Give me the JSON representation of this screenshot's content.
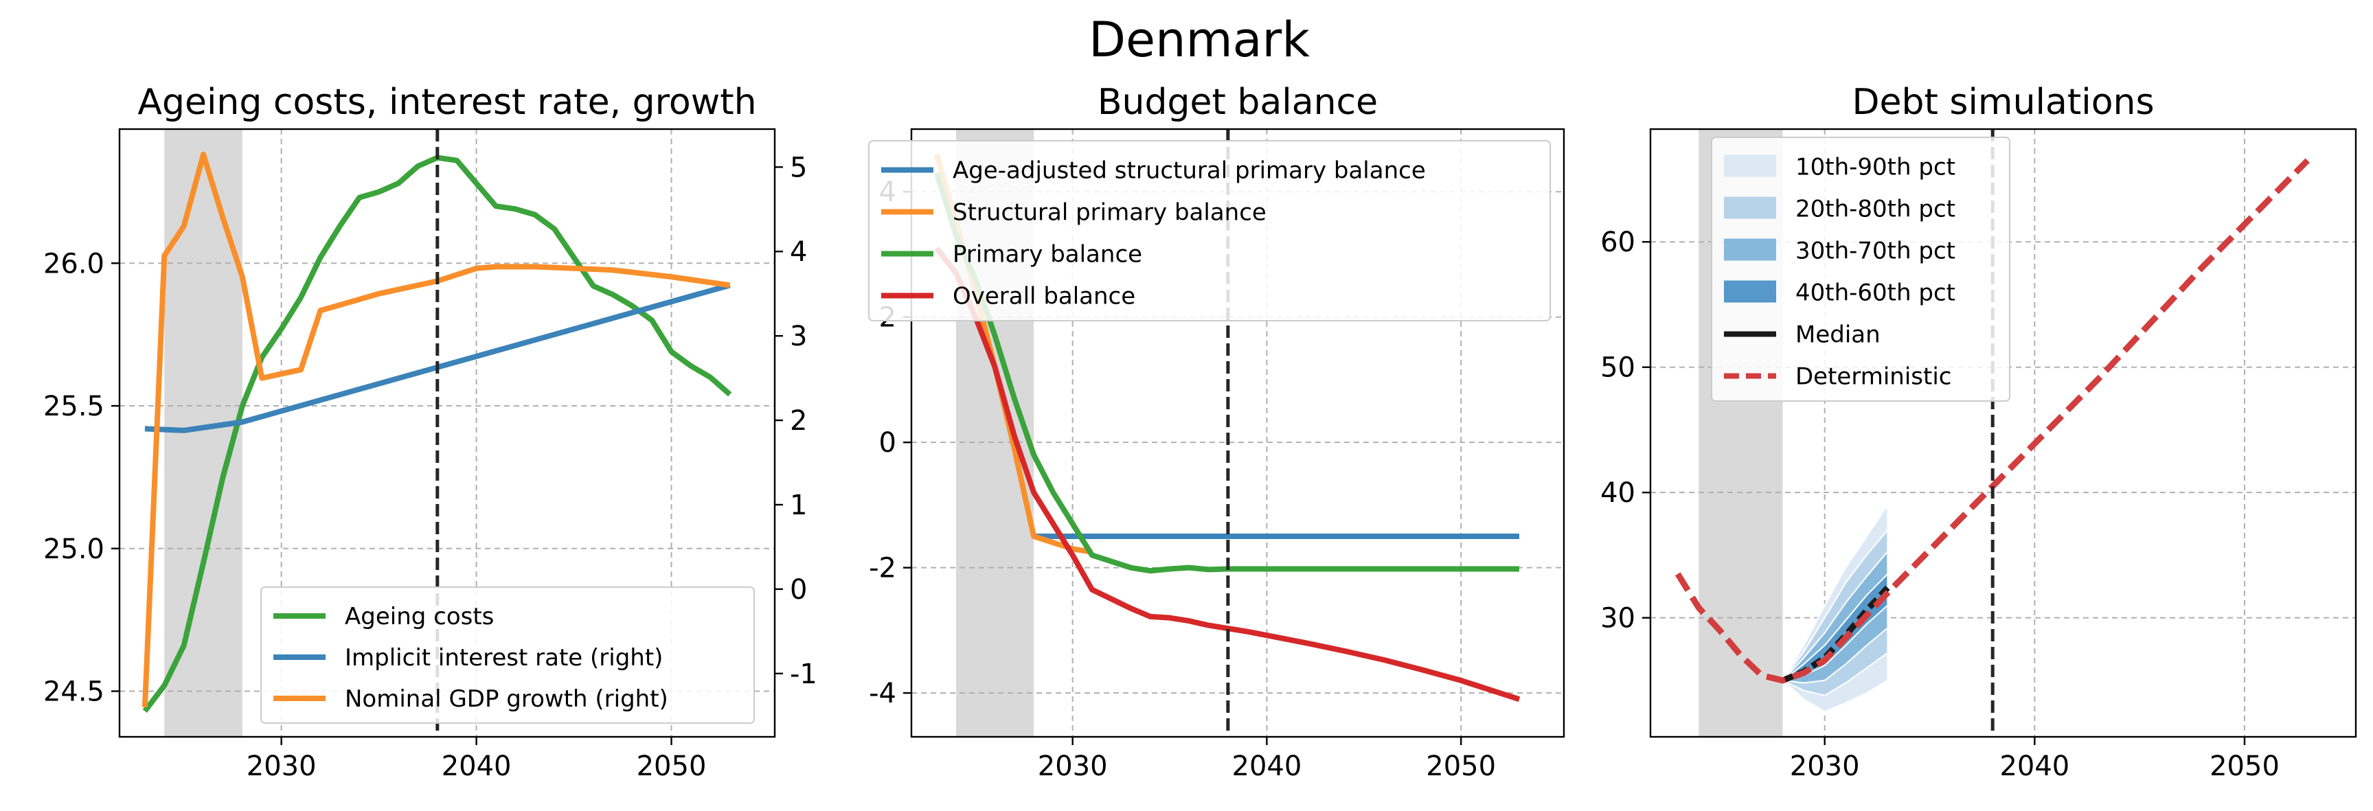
{
  "figure": {
    "title": "Denmark"
  },
  "colors": {
    "green": "#3ba33b",
    "blue": "#3b83b8",
    "orange": "#f98f2b",
    "red": "#d62828",
    "deterministic": "#d23d3d",
    "median": "#1a1a1a",
    "fan1": "#dce9f5",
    "fan2": "#b6d3ea",
    "fan3": "#86b8dc",
    "fan4": "#5598c9"
  },
  "chart_data": [
    {
      "type": "line",
      "title": "Ageing costs, interest rate, growth",
      "xlim": [
        2021.7,
        2055.3
      ],
      "ylim": [
        24.34,
        26.47
      ],
      "y2lim": [
        -1.75,
        5.45
      ],
      "xticks": [
        2030,
        2040,
        2050
      ],
      "yticks": [
        24.5,
        25.0,
        25.5,
        26.0
      ],
      "ytick_labels": [
        "24.5",
        "25.0",
        "25.5",
        "26.0"
      ],
      "y2ticks": [
        -1,
        0,
        1,
        2,
        3,
        4,
        5
      ],
      "y2tick_labels": [
        "-1",
        "0",
        "1",
        "2",
        "3",
        "4",
        "5"
      ],
      "shaded_span": [
        2024,
        2028
      ],
      "vline": 2038,
      "legend_position": "lower-right",
      "series": [
        {
          "name": "Ageing costs",
          "axis": "left",
          "color": "green",
          "x": [
            2023,
            2024,
            2025,
            2026,
            2027,
            2028,
            2029,
            2030,
            2031,
            2032,
            2033,
            2034,
            2035,
            2036,
            2037,
            2038,
            2039,
            2040,
            2041,
            2042,
            2043,
            2044,
            2045,
            2046,
            2047,
            2048,
            2049,
            2050,
            2051,
            2052,
            2053
          ],
          "y": [
            24.43,
            24.52,
            24.66,
            24.95,
            25.25,
            25.5,
            25.67,
            25.77,
            25.88,
            26.02,
            26.13,
            26.23,
            26.25,
            26.28,
            26.34,
            26.37,
            26.36,
            26.28,
            26.2,
            26.19,
            26.17,
            26.12,
            26.02,
            25.92,
            25.89,
            25.85,
            25.8,
            25.69,
            25.64,
            25.6,
            25.54
          ]
        },
        {
          "name": "Implicit interest rate (right)",
          "axis": "right",
          "color": "blue",
          "x": [
            2023,
            2025,
            2028,
            2053
          ],
          "y": [
            1.9,
            1.88,
            1.98,
            3.6
          ]
        },
        {
          "name": "Nominal GDP growth (right)",
          "axis": "right",
          "color": "orange",
          "x": [
            2023,
            2024,
            2025,
            2026,
            2027,
            2028,
            2029,
            2030,
            2031,
            2032,
            2035,
            2038,
            2040,
            2041,
            2043,
            2045,
            2047,
            2050,
            2053
          ],
          "y": [
            -1.4,
            3.95,
            4.3,
            5.15,
            4.4,
            3.7,
            2.5,
            2.55,
            2.6,
            3.3,
            3.5,
            3.65,
            3.8,
            3.82,
            3.82,
            3.8,
            3.78,
            3.7,
            3.6
          ]
        }
      ]
    },
    {
      "type": "line",
      "title": "Budget balance",
      "xlim": [
        2021.7,
        2055.3
      ],
      "ylim": [
        -4.7,
        5.0
      ],
      "xticks": [
        2030,
        2040,
        2050
      ],
      "yticks": [
        -4,
        -2,
        0,
        2,
        4
      ],
      "ytick_labels": [
        "-4",
        "-2",
        "0",
        "2",
        "4"
      ],
      "shaded_span": [
        2024,
        2028
      ],
      "vline": 2038,
      "legend_position": "upper-right",
      "series": [
        {
          "name": "Age-adjusted structural primary balance",
          "color": "blue",
          "x": [
            2028,
            2053
          ],
          "y": [
            -1.5,
            -1.5
          ]
        },
        {
          "name": "Structural primary balance",
          "color": "orange",
          "x": [
            2023,
            2024,
            2025,
            2026,
            2027,
            2028,
            2029,
            2030,
            2031
          ],
          "y": [
            4.6,
            3.5,
            2.4,
            1.2,
            -0.1,
            -1.5,
            -1.6,
            -1.7,
            -1.75
          ]
        },
        {
          "name": "Primary balance",
          "color": "green",
          "x": [
            2023,
            2024,
            2025,
            2026,
            2027,
            2028,
            2029,
            2030,
            2031,
            2032,
            2033,
            2034,
            2035,
            2036,
            2037,
            2038,
            2039,
            2040,
            2045,
            2050,
            2053
          ],
          "y": [
            4.3,
            3.3,
            2.6,
            1.7,
            0.7,
            -0.2,
            -0.8,
            -1.3,
            -1.8,
            -1.9,
            -2.0,
            -2.05,
            -2.02,
            -2.0,
            -2.03,
            -2.02,
            -2.02,
            -2.02,
            -2.02,
            -2.02,
            -2.02
          ]
        },
        {
          "name": "Overall balance",
          "color": "red",
          "x": [
            2023,
            2024,
            2025,
            2026,
            2027,
            2028,
            2029,
            2030,
            2031,
            2032,
            2033,
            2034,
            2035,
            2036,
            2037,
            2038,
            2039,
            2040,
            2042,
            2044,
            2046,
            2048,
            2050,
            2052,
            2053
          ],
          "y": [
            3.1,
            2.7,
            2.0,
            1.2,
            0.1,
            -0.8,
            -1.3,
            -1.8,
            -2.35,
            -2.5,
            -2.65,
            -2.78,
            -2.8,
            -2.85,
            -2.92,
            -2.97,
            -3.02,
            -3.08,
            -3.2,
            -3.33,
            -3.47,
            -3.63,
            -3.8,
            -4.0,
            -4.1
          ]
        }
      ]
    },
    {
      "type": "area",
      "title": "Debt simulations",
      "xlim": [
        2021.7,
        2055.3
      ],
      "ylim": [
        20.5,
        69.0
      ],
      "xticks": [
        2030,
        2040,
        2050
      ],
      "yticks": [
        30,
        40,
        50,
        60
      ],
      "ytick_labels": [
        "30",
        "40",
        "50",
        "60"
      ],
      "shaded_span": [
        2024,
        2028
      ],
      "vline": 2038,
      "legend_position": "upper-left",
      "fan": {
        "x": [
          2028,
          2029,
          2030,
          2031,
          2032,
          2033
        ],
        "bands": [
          {
            "name": "10th-90th pct",
            "color": "fan1",
            "low": [
              25.0,
              23.5,
              22.5,
              23.2,
              24.0,
              25.0
            ],
            "high": [
              25.0,
              27.8,
              31.0,
              34.0,
              36.5,
              39.0
            ]
          },
          {
            "name": "20th-80th pct",
            "color": "fan2",
            "low": [
              25.0,
              24.2,
              23.8,
              24.8,
              26.0,
              27.2
            ],
            "high": [
              25.0,
              27.3,
              30.0,
              32.8,
              35.0,
              37.0
            ]
          },
          {
            "name": "30th-70th pct",
            "color": "fan3",
            "low": [
              25.0,
              24.8,
              25.0,
              26.3,
              27.8,
              29.2
            ],
            "high": [
              25.0,
              26.8,
              28.8,
              31.2,
              33.3,
              35.3
            ]
          },
          {
            "name": "40th-60th pct",
            "color": "fan4",
            "low": [
              25.0,
              25.4,
              26.2,
              27.8,
              29.5,
              31.0
            ],
            "high": [
              25.0,
              26.3,
              27.8,
              29.8,
              31.8,
              33.5
            ]
          }
        ]
      },
      "series": [
        {
          "name": "Median",
          "color": "median",
          "x": [
            2028,
            2029,
            2030,
            2031,
            2032,
            2033
          ],
          "y": [
            25.0,
            25.7,
            26.8,
            28.6,
            30.6,
            32.4
          ]
        },
        {
          "name": "Deterministic",
          "color": "deterministic",
          "x": [
            2023,
            2024,
            2025,
            2026,
            2027,
            2028,
            2029,
            2030,
            2033,
            2038,
            2043,
            2048,
            2053
          ],
          "y": [
            33.5,
            30.8,
            29.0,
            27.0,
            25.4,
            25.0,
            25.6,
            26.6,
            32.0,
            40.5,
            49.0,
            58.0,
            66.5
          ]
        }
      ]
    }
  ]
}
